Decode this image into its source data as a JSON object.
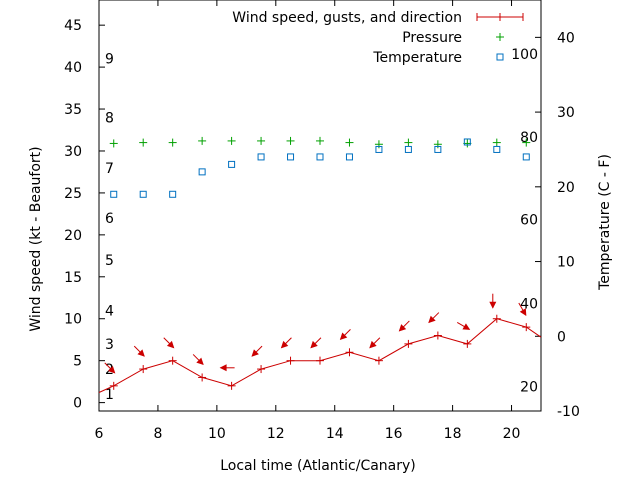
{
  "chart_data": {
    "type": "line",
    "xlabel": "Local time (Atlantic/Canary)",
    "ylabel": "Wind speed (kt - Beaufort)",
    "y2label": "Temperature (C - F)",
    "xlim": [
      6,
      21
    ],
    "ylim": [
      -1,
      48
    ],
    "y2lim": [
      -10,
      45
    ],
    "grid": false,
    "legend_position": "top-right",
    "x_ticks": [
      6,
      8,
      10,
      12,
      14,
      16,
      18,
      20
    ],
    "y_ticks": [
      0,
      5,
      10,
      15,
      20,
      25,
      30,
      35,
      40,
      45
    ],
    "y2_ticks": [
      -10,
      0,
      10,
      20,
      30,
      40
    ],
    "beaufort_labels": [
      {
        "label": "1",
        "value": 1.0
      },
      {
        "label": "2",
        "value": 4.0
      },
      {
        "label": "3",
        "value": 7.0
      },
      {
        "label": "4",
        "value": 11.0
      },
      {
        "label": "5",
        "value": 17.0
      },
      {
        "label": "6",
        "value": 22.0
      },
      {
        "label": "7",
        "value": 28.0
      },
      {
        "label": "8",
        "value": 34.0
      },
      {
        "label": "9",
        "value": 41.0
      }
    ],
    "fahrenheit_labels": [
      {
        "label": "20",
        "value": -6.7
      },
      {
        "label": "40",
        "value": 4.4
      },
      {
        "label": "60",
        "value": 15.6
      },
      {
        "label": "80",
        "value": 26.7
      },
      {
        "label": "100",
        "value": 37.8
      }
    ],
    "series": [
      {
        "name": "Wind speed, gusts, and direction",
        "axis": "left",
        "color": "#cc0000",
        "x": [
          6.5,
          7.5,
          8.5,
          9.5,
          10.5,
          11.5,
          12.5,
          13.5,
          14.5,
          15.5,
          16.5,
          17.5,
          18.5,
          19.5,
          20.5
        ],
        "values": [
          2,
          4,
          5,
          3,
          2,
          4,
          5,
          5,
          6,
          5,
          7,
          8,
          7,
          10,
          9
        ],
        "direction_deg": [
          315,
          315,
          315,
          315,
          90,
          45,
          45,
          45,
          45,
          45,
          45,
          45,
          300,
          0,
          330
        ]
      },
      {
        "name": "Pressure",
        "axis": "left",
        "color": "#00a000",
        "x": [
          6.5,
          7.5,
          8.5,
          9.5,
          10.5,
          11.5,
          12.5,
          13.5,
          14.5,
          15.5,
          16.5,
          17.5,
          18.5,
          19.5,
          20.5
        ],
        "values": [
          30.9,
          31.0,
          31.0,
          31.2,
          31.2,
          31.2,
          31.2,
          31.2,
          31.0,
          30.8,
          31.0,
          30.8,
          30.9,
          31.0,
          31.0
        ]
      },
      {
        "name": "Temperature",
        "axis": "right",
        "color": "#0070c0",
        "x": [
          6.5,
          7.5,
          8.5,
          9.5,
          10.5,
          11.5,
          12.5,
          13.5,
          14.5,
          15.5,
          16.5,
          17.5,
          18.5,
          19.5,
          20.5
        ],
        "values": [
          19,
          19,
          19,
          22,
          23,
          24,
          24,
          24,
          24,
          25,
          25,
          25,
          26,
          25,
          24
        ]
      }
    ]
  }
}
